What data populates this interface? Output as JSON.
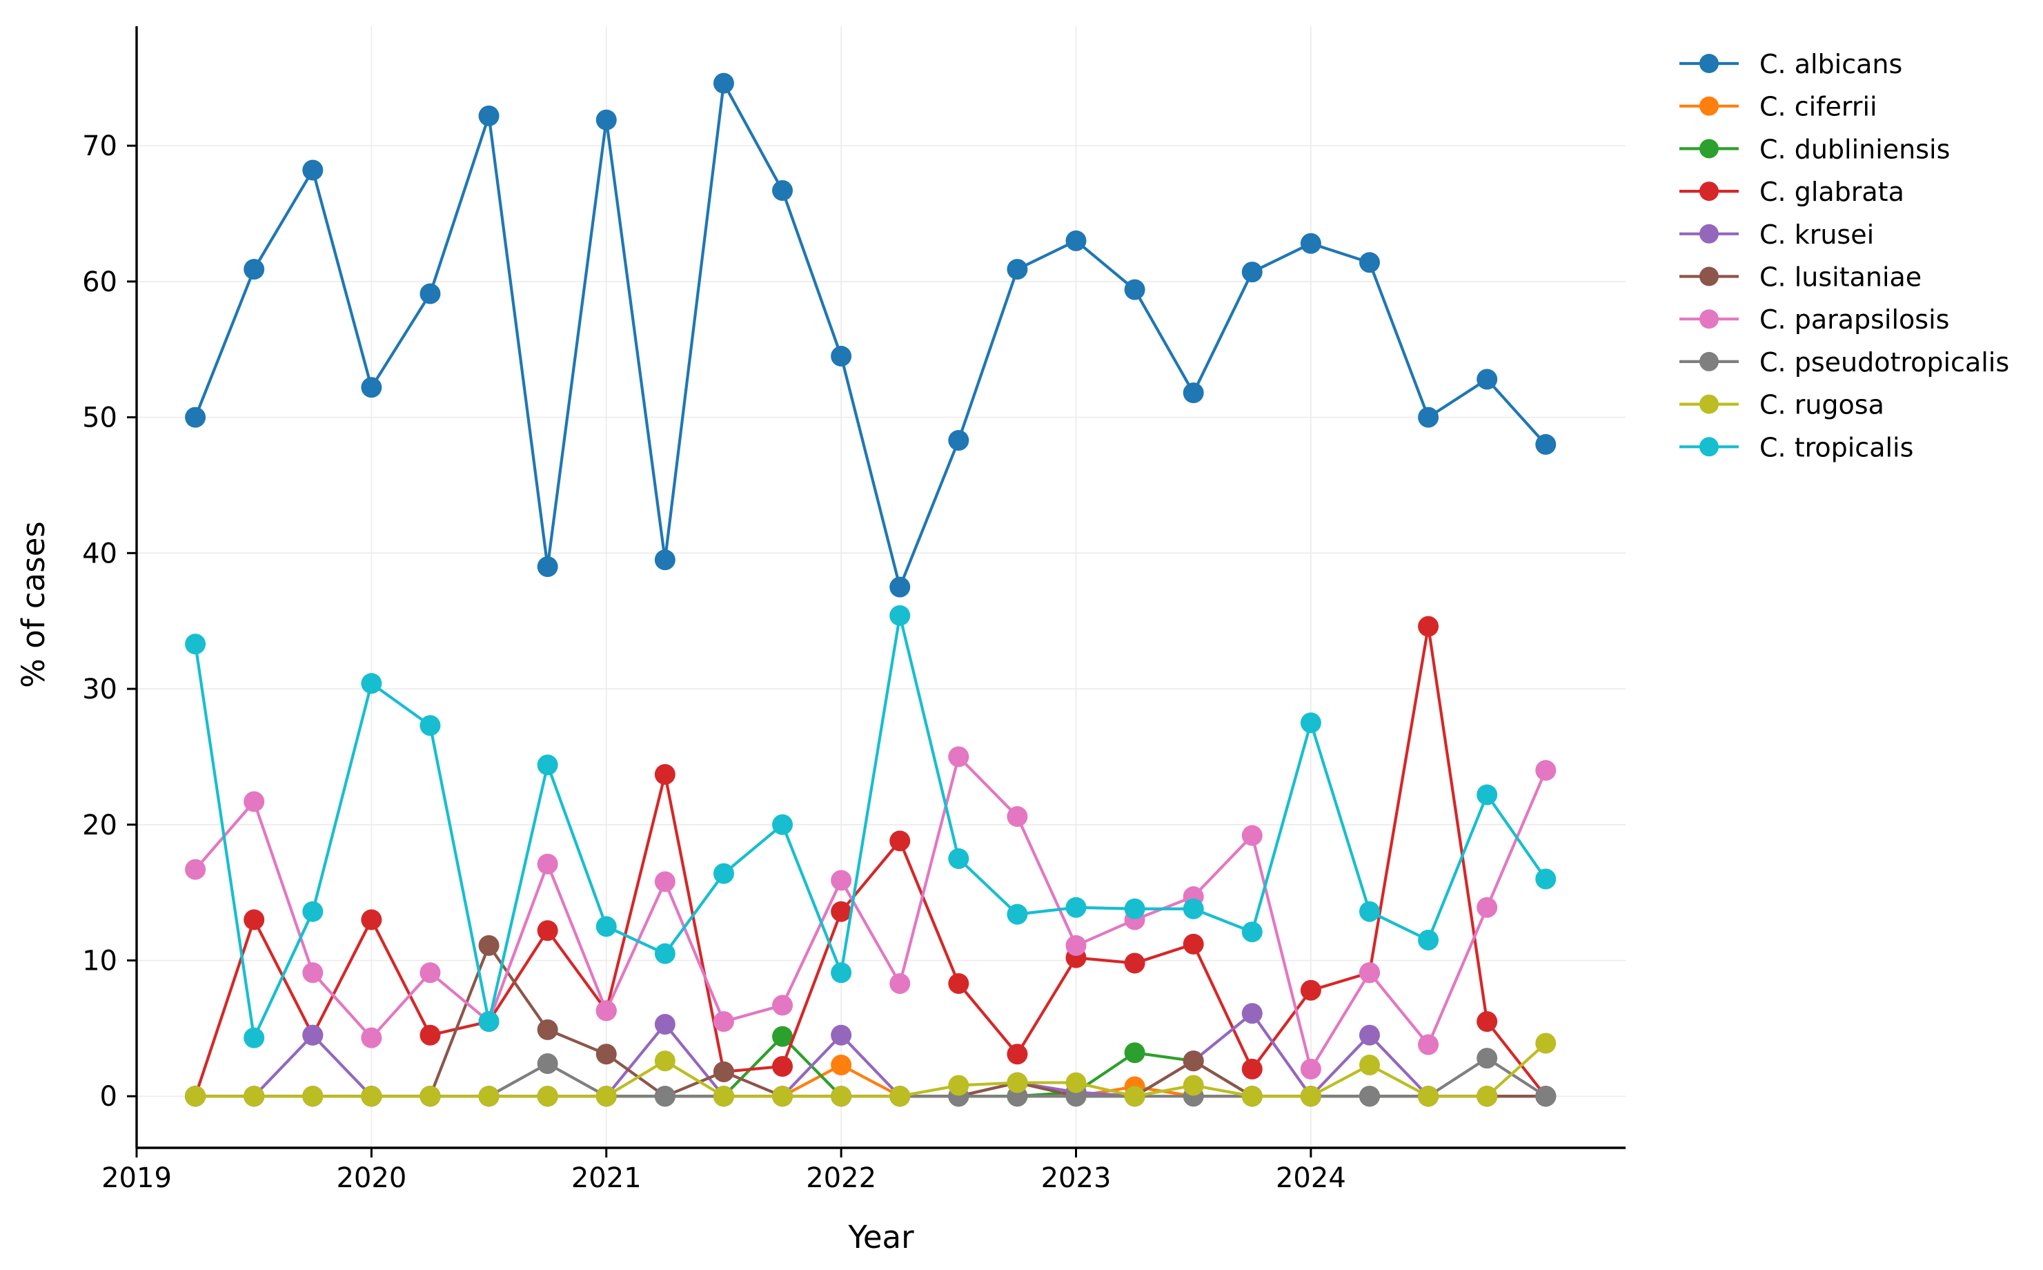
{
  "chart_data": {
    "type": "line",
    "xlabel": "Year",
    "ylabel": "% of cases",
    "xlim": [
      2019.0,
      2025.34
    ],
    "ylim": [
      -3.8,
      78.8
    ],
    "x_ticks": [
      2019,
      2020,
      2021,
      2022,
      2023,
      2024
    ],
    "x_tick_labels": [
      "2019",
      "2020",
      "2021",
      "2022",
      "2023",
      "2024"
    ],
    "y_ticks": [
      0,
      10,
      20,
      30,
      40,
      50,
      60,
      70
    ],
    "y_tick_labels": [
      "0",
      "10",
      "20",
      "30",
      "40",
      "50",
      "60",
      "70"
    ],
    "grid": true,
    "legend_position": "outside-right-top",
    "markers": "circle",
    "x": [
      2019.25,
      2019.5,
      2019.75,
      2020.0,
      2020.25,
      2020.5,
      2020.75,
      2021.0,
      2021.25,
      2021.5,
      2021.75,
      2022.0,
      2022.25,
      2022.5,
      2022.75,
      2023.0,
      2023.25,
      2023.5,
      2023.75,
      2024.0,
      2024.25,
      2024.5,
      2024.75,
      2025.0
    ],
    "series": [
      {
        "name": "C. albicans",
        "color": "#1f77b4",
        "values": [
          50.0,
          60.9,
          68.2,
          52.2,
          59.1,
          72.2,
          39.0,
          71.9,
          39.5,
          74.6,
          66.7,
          54.5,
          37.5,
          48.3,
          60.9,
          63.0,
          59.4,
          51.8,
          60.7,
          62.8,
          61.4,
          50.0,
          52.8,
          48.0
        ]
      },
      {
        "name": "C. ciferrii",
        "color": "#ff7f0e",
        "values": [
          0,
          0,
          0,
          0,
          0,
          0,
          0,
          0,
          0,
          0,
          0,
          2.3,
          0,
          0,
          0,
          0,
          0.7,
          0,
          0,
          0,
          0,
          0,
          0,
          0
        ]
      },
      {
        "name": "C. dubliniensis",
        "color": "#2ca02c",
        "values": [
          0,
          0,
          0,
          0,
          0,
          0,
          0,
          0,
          0,
          0,
          4.4,
          0,
          0,
          0,
          0,
          0.3,
          3.2,
          2.6,
          0,
          0,
          0,
          0,
          0,
          0
        ]
      },
      {
        "name": "C. glabrata",
        "color": "#d62728",
        "values": [
          0,
          13.0,
          4.5,
          13.0,
          4.5,
          5.5,
          12.2,
          6.3,
          23.7,
          1.8,
          2.2,
          13.6,
          18.8,
          8.3,
          3.1,
          10.2,
          9.8,
          11.2,
          2.0,
          7.8,
          9.1,
          34.6,
          5.5,
          0
        ]
      },
      {
        "name": "C. krusei",
        "color": "#9467bd",
        "values": [
          0,
          0,
          4.5,
          0,
          0,
          0,
          0,
          0,
          5.3,
          0,
          0,
          4.5,
          0,
          0,
          1.0,
          0.3,
          0,
          2.6,
          6.1,
          0,
          4.5,
          0,
          0,
          0
        ]
      },
      {
        "name": "C. lusitaniae",
        "color": "#8c564b",
        "values": [
          0,
          0,
          0,
          0,
          0,
          11.1,
          4.9,
          3.1,
          0,
          1.8,
          0,
          0,
          0,
          0,
          1.0,
          0,
          0,
          2.6,
          0,
          0,
          0,
          0,
          0,
          0
        ]
      },
      {
        "name": "C. parapsilosis",
        "color": "#e377c2",
        "values": [
          16.7,
          21.7,
          9.1,
          4.3,
          9.1,
          5.5,
          17.1,
          6.3,
          15.8,
          5.5,
          6.7,
          15.9,
          8.3,
          25.0,
          20.6,
          11.1,
          13.0,
          14.7,
          19.2,
          2.0,
          9.1,
          3.8,
          13.9,
          24.0
        ]
      },
      {
        "name": "C. pseudotropicalis",
        "color": "#7f7f7f",
        "values": [
          0,
          0,
          0,
          0,
          0,
          0,
          2.4,
          0,
          0,
          0,
          0,
          0,
          0,
          0,
          0,
          0,
          0,
          0,
          0,
          0,
          0,
          0,
          2.8,
          0
        ]
      },
      {
        "name": "C. rugosa",
        "color": "#bcbd22",
        "values": [
          0,
          0,
          0,
          0,
          0,
          0,
          0,
          0,
          2.6,
          0,
          0,
          0,
          0,
          0.8,
          1.0,
          1.0,
          0,
          0.8,
          0,
          0,
          2.3,
          0,
          0,
          3.9
        ]
      },
      {
        "name": "C. tropicalis",
        "color": "#17becf",
        "values": [
          33.3,
          4.3,
          13.6,
          30.4,
          27.3,
          5.5,
          24.4,
          12.5,
          10.5,
          16.4,
          20.0,
          9.1,
          35.4,
          17.5,
          13.4,
          13.9,
          13.8,
          13.8,
          12.1,
          27.5,
          13.6,
          11.5,
          22.2,
          16.0
        ]
      }
    ]
  }
}
